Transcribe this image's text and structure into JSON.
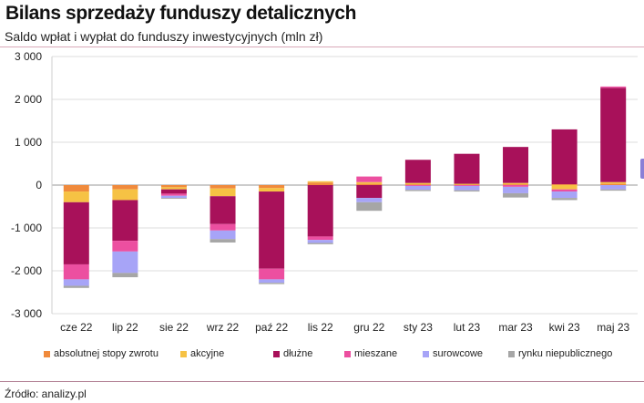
{
  "header": {
    "title": "Bilans sprzedaży funduszy detalicznych",
    "subtitle": "Saldo wpłat i wypłat do funduszy inwestycyjnych (mln zł)"
  },
  "footer": {
    "source": "Źródło: analizy.pl"
  },
  "chart_data": {
    "type": "bar",
    "stacked": true,
    "categories": [
      "cze 22",
      "lip 22",
      "sie 22",
      "wrz 22",
      "paź 22",
      "lis 22",
      "gru 22",
      "sty 23",
      "lut 23",
      "mar 23",
      "kwi 23",
      "maj 23"
    ],
    "ylim": [
      -3000,
      3000
    ],
    "yticks": [
      3000,
      2000,
      1000,
      0,
      -1000,
      -2000,
      -3000
    ],
    "ytick_labels": [
      "3 000",
      "2 000",
      "1 000",
      "0",
      "-1 000",
      "-2 000",
      "-3 000"
    ],
    "grid": true,
    "legend_position": "bottom",
    "series": [
      {
        "name": "absolutnej stopy zwrotu",
        "color": "#f08a3c",
        "values": [
          -150,
          -100,
          -50,
          -80,
          -70,
          60,
          30,
          20,
          10,
          20,
          20,
          30
        ]
      },
      {
        "name": "akcyjne",
        "color": "#f6c244",
        "values": [
          -250,
          -250,
          -50,
          -180,
          -80,
          30,
          40,
          30,
          20,
          30,
          -100,
          40
        ]
      },
      {
        "name": "dłużne",
        "color": "#a8115a",
        "values": [
          -1450,
          -950,
          -100,
          -650,
          -1800,
          -1200,
          -300,
          540,
          700,
          840,
          1280,
          2200
        ]
      },
      {
        "name": "mieszane",
        "color": "#ec4fa0",
        "values": [
          -350,
          -250,
          -50,
          -150,
          -250,
          -80,
          130,
          -20,
          -20,
          -40,
          -50,
          30
        ]
      },
      {
        "name": "surowcowe",
        "color": "#a7a4f7",
        "values": [
          -150,
          -500,
          -50,
          -200,
          -80,
          -70,
          -100,
          -90,
          -100,
          -150,
          -150,
          -100
        ]
      },
      {
        "name": "rynku niepublicznego",
        "color": "#a6a6a6",
        "values": [
          -50,
          -100,
          -20,
          -80,
          -30,
          -30,
          -200,
          -30,
          -30,
          -100,
          -50,
          -30
        ]
      }
    ]
  }
}
